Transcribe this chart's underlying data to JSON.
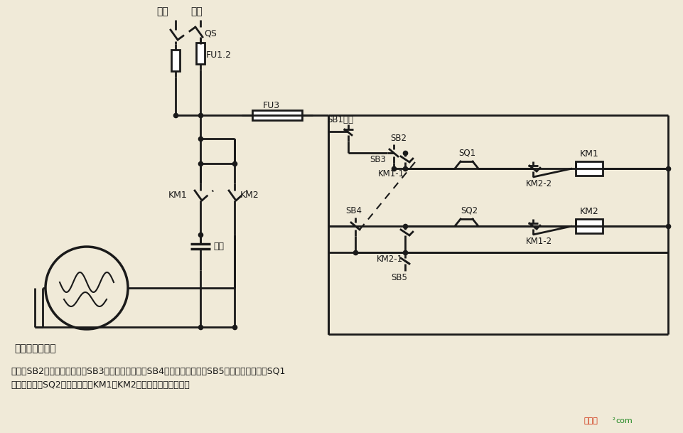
{
  "bg_color": "#f0ead8",
  "lc": "#1a1a1a",
  "lw": 2.0,
  "label_huoxian": "火线",
  "label_lingxian": "零线",
  "label_QS": "QS",
  "label_FU12": "FU1.2",
  "label_FU3": "FU3",
  "label_SB1": "SB1停止",
  "label_SB2": "SB2",
  "label_KM1_1": "KM1-1",
  "label_SB3": "SB3",
  "label_SQ1": "SQ1",
  "label_KM1_coil": "KM1",
  "label_KM2_2": "KM2-2",
  "label_SB4": "SB4",
  "label_KM2_1": "KM2-1",
  "label_SB5": "SB5",
  "label_SQ2": "SQ2",
  "label_KM2_coil": "KM2",
  "label_KM1_2": "KM1-2",
  "label_KM1_main": "KM1",
  "label_KM2_main": "KM2",
  "label_capacitor": "电容",
  "motor_label": "单相电容电动机",
  "caption1": "说明：SB2为上升启动按鈕，SB3为上升点动按鈕，SB4为下降启动按鈕，SB5为下降点动按鈕；SQ1",
  "caption2": "为最高限位，SQ2为最低限位。KM1、KM2可用中间继电器代替。"
}
